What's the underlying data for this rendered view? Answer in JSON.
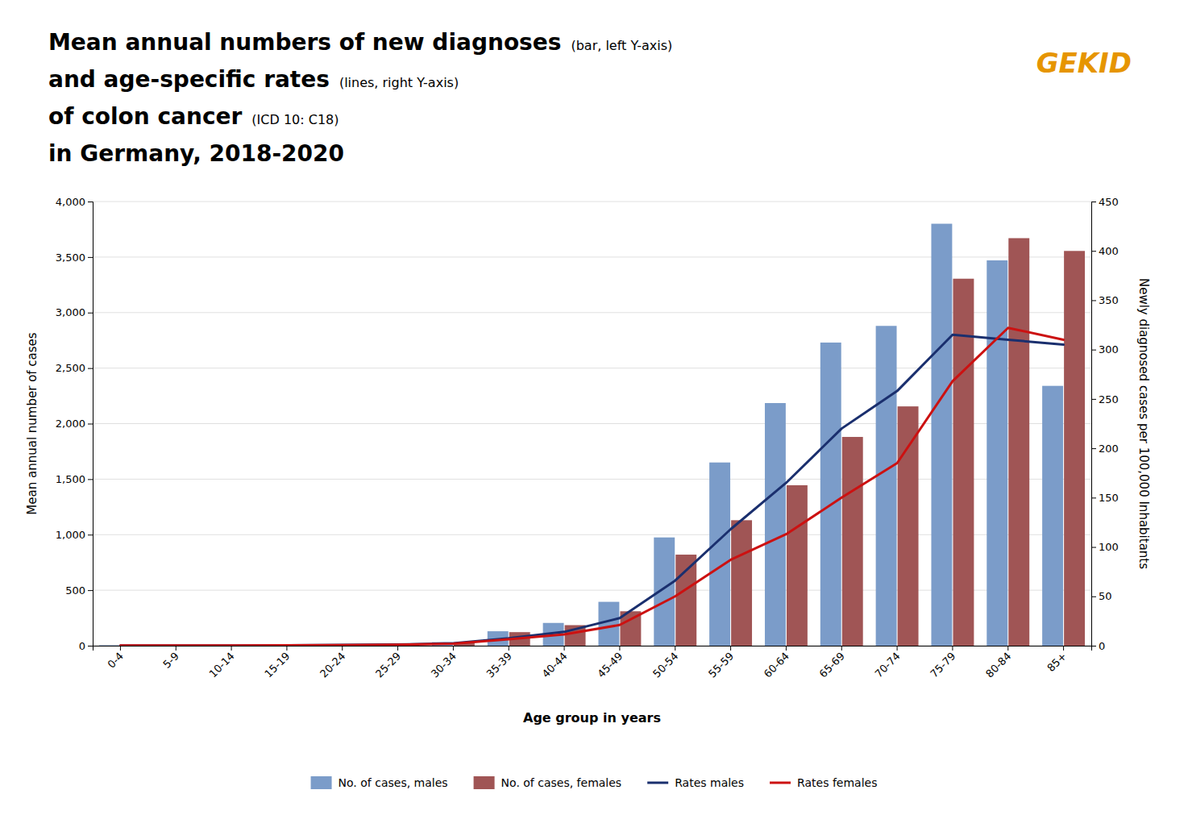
{
  "chart_data": {
    "type": "bar",
    "title": [
      "Mean annual numbers of new diagnoses",
      "and age-specific rates",
      "of colon cancer",
      "in Germany, 2018-2020"
    ],
    "annotations": [
      "(bar, left Y-axis)",
      "(lines, right Y-axis)",
      "(ICD 10: C18)",
      "GEKID"
    ],
    "x_label": "Age group in years",
    "y_label": "Mean annual number of cases",
    "y2_label": "Newly diagnosed cases per 100,000 Inhabitants",
    "categories": [
      "0-4",
      "5-9",
      "10-14",
      "15-19",
      "20-24",
      "25-29",
      "30-34",
      "35-39",
      "40-44",
      "45-49",
      "50-54",
      "55-59",
      "60-64",
      "65-69",
      "70-74",
      "75-79",
      "80-84",
      "85+"
    ],
    "series": [
      {
        "name": "No. of cases, males",
        "type": "bar",
        "color": "#7B9CC9",
        "values": [
          4,
          4,
          4,
          5,
          10,
          16,
          32,
          130,
          205,
          395,
          975,
          1650,
          2185,
          2730,
          2880,
          3800,
          3470,
          2340
        ]
      },
      {
        "name": "No. of cases, females",
        "type": "bar",
        "color": "#A05555",
        "values": [
          4,
          4,
          4,
          5,
          10,
          15,
          26,
          122,
          185,
          310,
          820,
          1130,
          1445,
          1880,
          2155,
          3305,
          3670,
          3555
        ]
      },
      {
        "name": "Rates males",
        "type": "line",
        "axis": "y2",
        "color": "#1A2F6E",
        "values": [
          0.3,
          0.3,
          0.3,
          0.4,
          0.8,
          1.2,
          2.5,
          7.5,
          14.0,
          28.0,
          66.0,
          118.0,
          165.0,
          220.0,
          258.0,
          315.0,
          310.0,
          305.0
        ]
      },
      {
        "name": "Rates females",
        "type": "line",
        "axis": "y2",
        "color": "#CC1111",
        "values": [
          0.3,
          0.3,
          0.3,
          0.4,
          0.6,
          1.0,
          2.0,
          6.5,
          11.5,
          21.0,
          50.0,
          87.0,
          113.0,
          150.0,
          185.0,
          268.0,
          322.0,
          310.0
        ]
      }
    ],
    "ylim": [
      0,
      4000
    ],
    "yticks": [
      0,
      500,
      {
        "value": 1000,
        "label": "1,000"
      },
      {
        "value": 1500,
        "label": "1,500"
      },
      {
        "value": 2000,
        "label": "2,000"
      },
      {
        "value": 2500,
        "label": "2,500"
      },
      {
        "value": 3000,
        "label": "3,000"
      },
      {
        "value": 3500,
        "label": "3,500"
      },
      {
        "value": 4000,
        "label": "4,000"
      }
    ],
    "y2lim": [
      0,
      450
    ],
    "y2ticks": [
      0,
      50,
      100,
      150,
      200,
      250,
      300,
      350,
      400,
      450
    ],
    "grid": true,
    "legend": "bottom"
  }
}
